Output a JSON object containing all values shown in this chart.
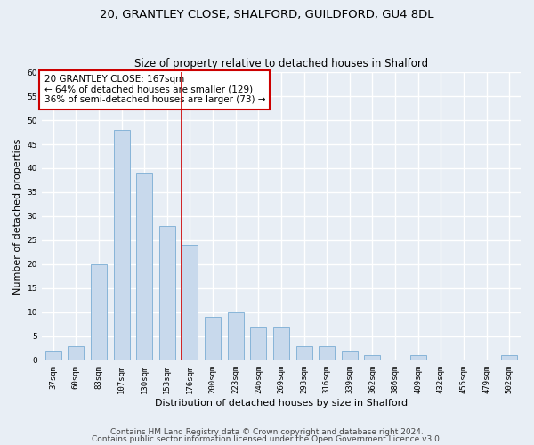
{
  "title1": "20, GRANTLEY CLOSE, SHALFORD, GUILDFORD, GU4 8DL",
  "title2": "Size of property relative to detached houses in Shalford",
  "xlabel": "Distribution of detached houses by size in Shalford",
  "ylabel": "Number of detached properties",
  "categories": [
    "37sqm",
    "60sqm",
    "83sqm",
    "107sqm",
    "130sqm",
    "153sqm",
    "176sqm",
    "200sqm",
    "223sqm",
    "246sqm",
    "269sqm",
    "293sqm",
    "316sqm",
    "339sqm",
    "362sqm",
    "386sqm",
    "409sqm",
    "432sqm",
    "455sqm",
    "479sqm",
    "502sqm"
  ],
  "values": [
    2,
    3,
    20,
    48,
    39,
    28,
    24,
    9,
    10,
    7,
    7,
    3,
    3,
    2,
    1,
    0,
    1,
    0,
    0,
    0,
    1
  ],
  "bar_color": "#c8d9ec",
  "bar_edge_color": "#7aadd4",
  "vline_color": "#cc0000",
  "annotation_title": "20 GRANTLEY CLOSE: 167sqm",
  "annotation_line1": "← 64% of detached houses are smaller (129)",
  "annotation_line2": "36% of semi-detached houses are larger (73) →",
  "annotation_box_color": "#ffffff",
  "annotation_box_edge": "#cc0000",
  "ylim": [
    0,
    60
  ],
  "yticks": [
    0,
    5,
    10,
    15,
    20,
    25,
    30,
    35,
    40,
    45,
    50,
    55,
    60
  ],
  "background_color": "#e8eef5",
  "grid_color": "#ffffff",
  "footer1": "Contains HM Land Registry data © Crown copyright and database right 2024.",
  "footer2": "Contains public sector information licensed under the Open Government Licence v3.0.",
  "title1_fontsize": 9.5,
  "title2_fontsize": 8.5,
  "xlabel_fontsize": 8,
  "ylabel_fontsize": 8,
  "tick_fontsize": 6.5,
  "annotation_fontsize": 7.5,
  "footer_fontsize": 6.5
}
